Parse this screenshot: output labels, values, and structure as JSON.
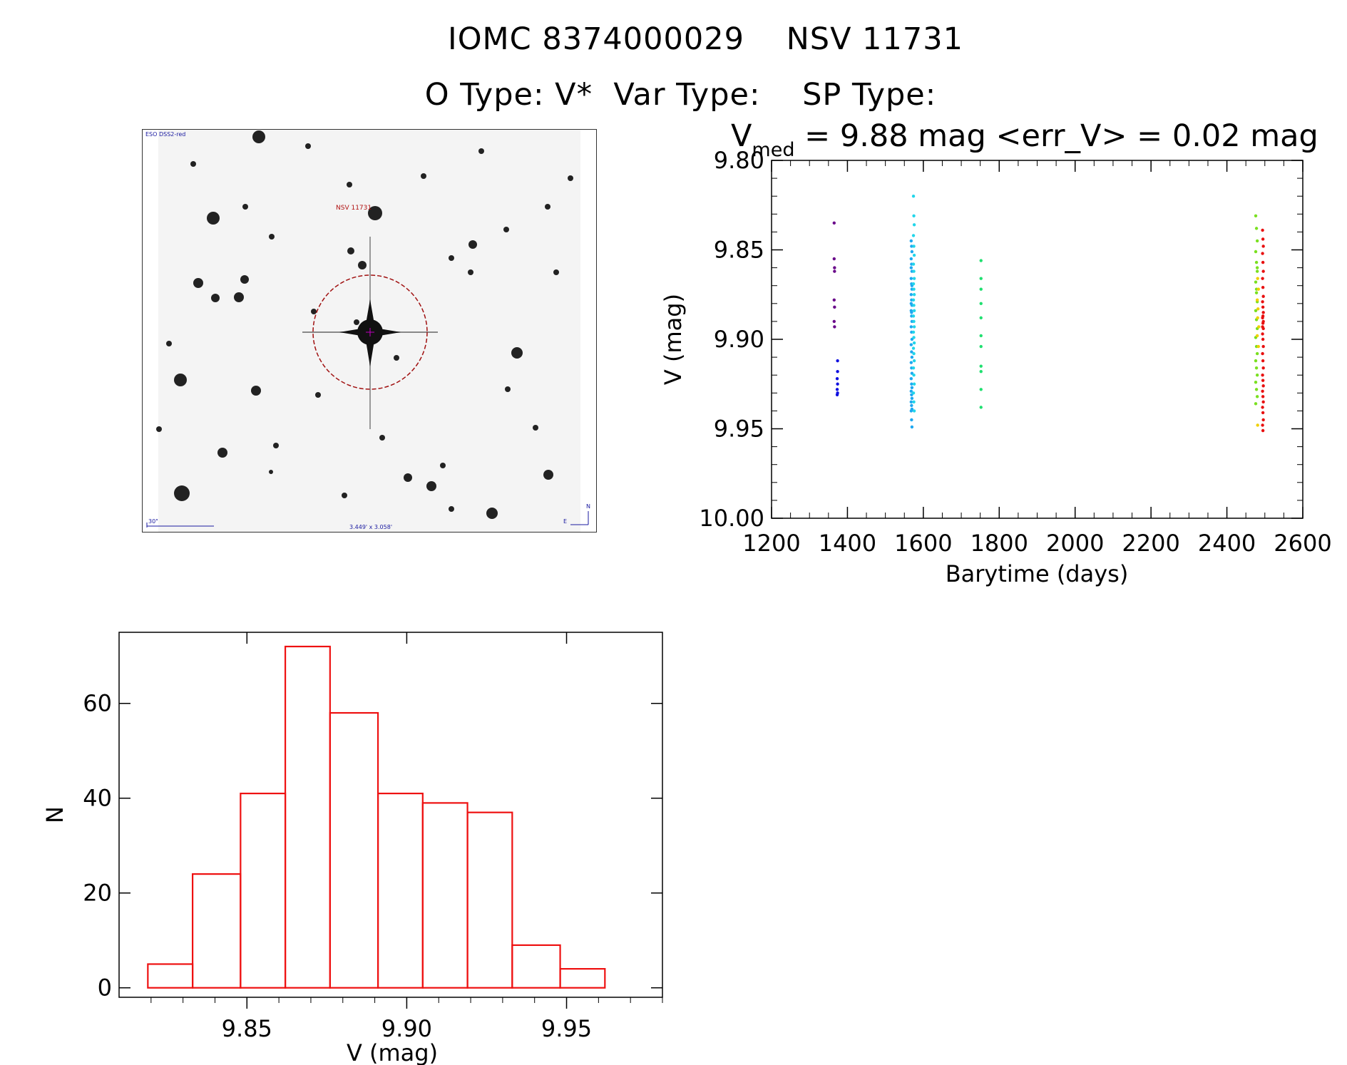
{
  "header": {
    "line1": "IOMC 8374000029    NSV 11731",
    "line2": "O Type: V*  Var Type:    SP Type:"
  },
  "image_panel": {
    "survey_label": "ESO DSS2-red",
    "object_label": "NSV 11731",
    "scale_label": "30\"",
    "fov_label": "3.449' x 3.058'",
    "compass_n": "N",
    "compass_e": "E"
  },
  "chart_data": [
    {
      "type": "scatter",
      "title_prefix": "V",
      "title_sub": "med",
      "title_rest": " = 9.88 mag <err_V> = 0.02 mag",
      "xlabel": "Barytime (days)",
      "ylabel": "V (mag)",
      "xlim": [
        1200,
        2600
      ],
      "ylim": [
        10.0,
        9.8
      ],
      "y_inverted": true,
      "xticks": [
        "1200",
        "1400",
        "1600",
        "1800",
        "2000",
        "2200",
        "2400",
        "2600"
      ],
      "yticks": [
        "9.80",
        "9.85",
        "9.90",
        "9.95",
        "10.00"
      ],
      "series": [
        {
          "color": "#6a0a8a",
          "x": [
            1365,
            1365,
            1366,
            1366,
            1365,
            1366,
            1365,
            1366
          ],
          "y": [
            9.835,
            9.855,
            9.86,
            9.862,
            9.878,
            9.882,
            9.89,
            9.893
          ]
        },
        {
          "color": "#1010e0",
          "x": [
            1374,
            1374,
            1373,
            1374,
            1373,
            1374,
            1373
          ],
          "y": [
            9.912,
            9.918,
            9.922,
            9.925,
            9.928,
            9.93,
            9.931
          ]
        },
        {
          "color": "#1ea8f0",
          "x": [
            1568,
            1569,
            1570,
            1568,
            1569,
            1570,
            1568,
            1569,
            1570,
            1568,
            1569,
            1570,
            1568,
            1569,
            1570,
            1568,
            1569,
            1570,
            1568,
            1569,
            1570,
            1568,
            1569,
            1570,
            1568,
            1569,
            1570,
            1568,
            1569,
            1570,
            1568,
            1569,
            1570,
            1568,
            1569,
            1570,
            1568,
            1569,
            1570,
            1568
          ],
          "y": [
            9.845,
            9.848,
            9.851,
            9.855,
            9.858,
            9.862,
            9.866,
            9.869,
            9.872,
            9.875,
            9.878,
            9.881,
            9.884,
            9.887,
            9.89,
            9.893,
            9.896,
            9.9,
            9.903,
            9.907,
            9.91,
            9.913,
            9.916,
            9.919,
            9.922,
            9.925,
            9.927,
            9.929,
            9.931,
            9.933,
            9.935,
            9.937,
            9.939,
            9.94,
            9.945,
            9.949,
            9.88,
            9.885,
            9.87,
            9.86
          ]
        },
        {
          "color": "#22d6ea",
          "x": [
            1574,
            1575,
            1576,
            1574,
            1575,
            1576,
            1574,
            1575,
            1576,
            1574,
            1575,
            1576,
            1574,
            1575,
            1576,
            1574,
            1575,
            1576,
            1574,
            1575,
            1576,
            1574,
            1575,
            1576,
            1574,
            1575,
            1576,
            1574,
            1575,
            1576
          ],
          "y": [
            9.82,
            9.831,
            9.836,
            9.842,
            9.848,
            9.853,
            9.858,
            9.862,
            9.866,
            9.869,
            9.872,
            9.875,
            9.878,
            9.881,
            9.884,
            9.887,
            9.89,
            9.893,
            9.896,
            9.899,
            9.902,
            9.905,
            9.908,
            9.912,
            9.916,
            9.92,
            9.925,
            9.93,
            9.935,
            9.94
          ]
        },
        {
          "color": "#20e070",
          "x": [
            1752,
            1752,
            1752,
            1752,
            1752,
            1752,
            1752,
            1752,
            1752,
            1752,
            1752
          ],
          "y": [
            9.856,
            9.866,
            9.872,
            9.88,
            9.888,
            9.898,
            9.904,
            9.915,
            9.918,
            9.928,
            9.938
          ]
        },
        {
          "color": "#7ae020",
          "x": [
            2476,
            2478,
            2480,
            2476,
            2478,
            2480,
            2476,
            2478,
            2480,
            2476,
            2478,
            2480,
            2476,
            2478,
            2480,
            2476,
            2478,
            2480,
            2476,
            2478,
            2480,
            2476,
            2478,
            2480
          ],
          "y": [
            9.831,
            9.838,
            9.845,
            9.851,
            9.857,
            9.862,
            9.868,
            9.874,
            9.879,
            9.884,
            9.889,
            9.894,
            9.899,
            9.904,
            9.908,
            9.912,
            9.916,
            9.92,
            9.924,
            9.928,
            9.932,
            9.936,
            9.872,
            9.86
          ]
        },
        {
          "color": "#f0d000",
          "x": [
            2481,
            2483,
            2480,
            2482,
            2481,
            2484,
            2480,
            2483,
            2481
          ],
          "y": [
            9.866,
            9.872,
            9.878,
            9.883,
            9.888,
            9.893,
            9.898,
            9.904,
            9.948
          ]
        },
        {
          "color": "#e81010",
          "x": [
            2494,
            2495,
            2496,
            2494,
            2495,
            2496,
            2494,
            2495,
            2496,
            2494,
            2495,
            2496,
            2494,
            2495,
            2496,
            2494,
            2495,
            2496,
            2494,
            2495,
            2496,
            2494,
            2495,
            2496,
            2494,
            2495,
            2496,
            2494,
            2495,
            2496,
            2494,
            2495,
            2496,
            2494,
            2495
          ],
          "y": [
            9.839,
            9.844,
            9.848,
            9.852,
            9.857,
            9.862,
            9.866,
            9.871,
            9.876,
            9.879,
            9.882,
            9.885,
            9.888,
            9.891,
            9.894,
            9.897,
            9.9,
            9.904,
            9.908,
            9.912,
            9.916,
            9.92,
            9.923,
            9.926,
            9.929,
            9.932,
            9.935,
            9.938,
            9.941,
            9.945,
            9.948,
            9.951,
            9.89,
            9.893,
            9.887
          ]
        }
      ]
    },
    {
      "type": "bar",
      "histogram": true,
      "xlabel": "V (mag)",
      "ylabel": "N",
      "xlim": [
        9.81,
        9.98
      ],
      "ylim": [
        -2,
        75
      ],
      "xticks": [
        "9.85",
        "9.90",
        "9.95"
      ],
      "yticks": [
        "0",
        "20",
        "40",
        "60"
      ],
      "bin_edges": [
        9.819,
        9.833,
        9.848,
        9.862,
        9.876,
        9.891,
        9.905,
        9.919,
        9.933,
        9.948,
        9.962
      ],
      "values": [
        5,
        24,
        41,
        72,
        58,
        41,
        39,
        37,
        9,
        4
      ],
      "color": "#ee1111"
    }
  ]
}
